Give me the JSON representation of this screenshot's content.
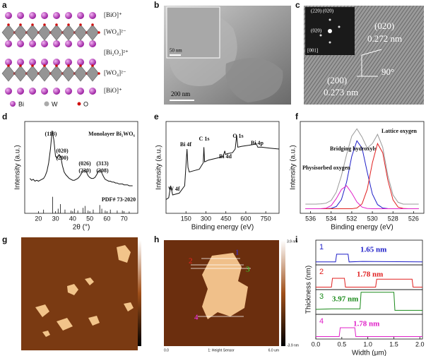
{
  "panel_labels": [
    "a",
    "b",
    "c",
    "d",
    "e",
    "f",
    "g",
    "h",
    "i"
  ],
  "structure": {
    "layers": [
      "[BiO]⁺",
      "[WO₄]²⁻",
      "[Bi₂O₂]²⁺",
      "[WO₄]²⁻",
      "[BiO]⁺"
    ],
    "legend": [
      "Bi",
      "W",
      "O"
    ]
  },
  "tem": {
    "scale_inset": "50 nm",
    "scale_main": "200 nm"
  },
  "hrtem": {
    "saed_labels": [
      "(220) (020)",
      "(020)",
      "[001]"
    ],
    "labels": [
      "(020)",
      "0.272 nm",
      "(200)",
      "0.273 nm",
      "90°"
    ]
  },
  "afm_h": {
    "profile_numbers": [
      "1",
      "2",
      "3",
      "4"
    ],
    "colorbar_max": "3.9 nm",
    "colorbar_min": "-3.9 nm",
    "x_start": "0.0",
    "x_end": "6.0 um",
    "channel": "1: Height Sensor"
  },
  "chart_data": [
    {
      "type": "line",
      "xlabel": "2θ (°)",
      "ylabel": "Intensity (a.u.)",
      "xlim": [
        12,
        78
      ],
      "xticks": [
        20,
        30,
        40,
        50,
        60,
        70
      ],
      "ylim": [
        0,
        1
      ],
      "x": [
        15,
        16,
        17,
        18,
        19,
        20,
        21,
        22,
        23,
        24,
        25,
        26,
        27,
        28,
        29,
        30,
        31,
        32,
        33,
        34,
        35,
        36,
        37,
        38,
        39,
        40,
        41,
        42,
        43,
        44,
        45,
        46,
        47,
        48,
        49,
        50,
        51,
        52,
        53,
        54,
        55,
        56,
        57,
        58,
        59,
        60,
        61,
        62,
        63,
        64,
        65,
        66,
        67,
        68,
        69,
        70,
        71,
        72,
        73,
        74,
        75
      ],
      "series": [
        {
          "color": "#111111",
          "values": [
            0.38,
            0.36,
            0.37,
            0.35,
            0.36,
            0.35,
            0.36,
            0.37,
            0.38,
            0.41,
            0.46,
            0.55,
            0.7,
            0.9,
            0.8,
            0.62,
            0.6,
            0.64,
            0.62,
            0.52,
            0.45,
            0.42,
            0.4,
            0.38,
            0.37,
            0.36,
            0.36,
            0.37,
            0.38,
            0.4,
            0.43,
            0.46,
            0.47,
            0.45,
            0.41,
            0.39,
            0.38,
            0.38,
            0.39,
            0.42,
            0.46,
            0.47,
            0.44,
            0.4,
            0.37,
            0.36,
            0.35,
            0.35,
            0.34,
            0.34,
            0.33,
            0.33,
            0.32,
            0.32,
            0.32,
            0.31,
            0.31,
            0.31,
            0.3,
            0.3,
            0.3
          ]
        }
      ],
      "reference_x": [
        23,
        28.3,
        31.5,
        32.8,
        35.5,
        39,
        41,
        43,
        46,
        47.2,
        49,
        52,
        55.8,
        57,
        59,
        62,
        66,
        69,
        73
      ],
      "reference_values": [
        0.04,
        0.18,
        0.05,
        0.1,
        0.04,
        0.03,
        0.05,
        0.03,
        0.06,
        0.08,
        0.03,
        0.04,
        0.09,
        0.05,
        0.03,
        0.04,
        0.03,
        0.03,
        0.02
      ],
      "annotations": [
        "(113)",
        "(020)",
        "(200)",
        "(026)",
        "(220)",
        "(313)",
        "(208)",
        "Monolayer Bi₂WO₆",
        "PDF# 73-2020"
      ]
    },
    {
      "type": "line",
      "xlabel": "Binding energy (eV)",
      "ylabel": "Intensity (a.u.)",
      "xlim": [
        0,
        850
      ],
      "xticks": [
        150,
        300,
        450,
        600,
        750
      ],
      "ylim": [
        0,
        1
      ],
      "x": [
        0,
        20,
        35,
        50,
        100,
        140,
        158,
        165,
        175,
        200,
        250,
        280,
        285,
        290,
        320,
        380,
        430,
        442,
        448,
        460,
        500,
        520,
        531,
        540,
        570,
        620,
        660,
        678,
        690,
        720,
        780,
        850
      ],
      "series": [
        {
          "color": "#111111",
          "values": [
            0.15,
            0.17,
            0.3,
            0.2,
            0.22,
            0.3,
            0.7,
            0.5,
            0.45,
            0.46,
            0.48,
            0.55,
            0.72,
            0.56,
            0.58,
            0.6,
            0.62,
            0.68,
            0.64,
            0.65,
            0.66,
            0.7,
            0.85,
            0.72,
            0.73,
            0.74,
            0.75,
            0.76,
            0.72,
            0.72,
            0.71,
            0.7
          ]
        }
      ],
      "annotations": [
        "W 4f",
        "Bi 4f",
        "C 1s",
        "Bi 4d",
        "O 1s",
        "Bi 4p"
      ]
    },
    {
      "type": "line",
      "xlabel": "Binding energy (eV)",
      "ylabel": "Intensity (a.u.)",
      "xlim": [
        537,
        525
      ],
      "xticks": [
        536,
        534,
        532,
        530,
        528,
        526
      ],
      "ylim": [
        0,
        1
      ],
      "x": [
        536.5,
        536,
        535.5,
        535,
        534.5,
        534,
        533.5,
        533,
        532.5,
        532,
        531.5,
        531,
        530.5,
        530,
        529.5,
        529,
        528.5,
        528,
        527.5,
        527,
        526.5,
        526,
        525.5
      ],
      "series": [
        {
          "color": "#999999",
          "values": [
            0.1,
            0.1,
            0.1,
            0.103,
            0.11,
            0.14,
            0.23,
            0.41,
            0.64,
            0.84,
            0.92,
            0.83,
            0.71,
            0.76,
            0.86,
            0.72,
            0.41,
            0.2,
            0.12,
            0.1,
            0.1,
            0.1,
            0.1
          ]
        },
        {
          "name": "Bridging hydroxyls",
          "color": "#1f1fc8",
          "values": [
            0.05,
            0.05,
            0.05,
            0.05,
            0.05,
            0.054,
            0.074,
            0.15,
            0.34,
            0.62,
            0.79,
            0.71,
            0.45,
            0.21,
            0.095,
            0.058,
            0.051,
            0.05,
            0.05,
            0.05,
            0.05,
            0.05,
            0.05
          ]
        },
        {
          "name": "Lattice oxygen",
          "color": "#e02020",
          "values": [
            0.05,
            0.05,
            0.05,
            0.05,
            0.05,
            0.05,
            0.05,
            0.05,
            0.05,
            0.05,
            0.058,
            0.103,
            0.26,
            0.55,
            0.76,
            0.66,
            0.36,
            0.147,
            0.068,
            0.053,
            0.05,
            0.05,
            0.05
          ]
        },
        {
          "name": "Physisorbed oxygen",
          "color": "#e020c8",
          "values": [
            0.05,
            0.05,
            0.05,
            0.051,
            0.056,
            0.084,
            0.16,
            0.26,
            0.3,
            0.22,
            0.123,
            0.068,
            0.053,
            0.05,
            0.05,
            0.05,
            0.05,
            0.05,
            0.05,
            0.05,
            0.05,
            0.05,
            0.05
          ]
        }
      ]
    },
    {
      "type": "line",
      "xlabel": "Width (μm)",
      "ylabel": "Thickness (nm)",
      "xlim": [
        0,
        2.05
      ],
      "xticks": [
        {
          "value": 0,
          "label": "0.0"
        },
        0.5,
        {
          "value": 1,
          "label": "1.0"
        },
        1.5,
        {
          "value": 2,
          "label": "2.0"
        }
      ],
      "ylim": [
        -0.5,
        4.5
      ],
      "series": [
        {
          "name": "1",
          "color": "#1f1fc8",
          "label": "1.65 nm",
          "x": [
            0,
            0.38,
            0.4,
            0.62,
            0.64,
            0.9,
            2.05
          ],
          "values": [
            0.1,
            0.1,
            1.65,
            1.65,
            0.1,
            0.2,
            0.1
          ]
        },
        {
          "name": "2",
          "color": "#e02020",
          "label": "1.78 nm",
          "x": [
            0,
            0.3,
            0.32,
            0.55,
            0.57,
            1.15,
            1.17,
            1.85,
            1.87,
            2.05
          ],
          "values": [
            0,
            0,
            1.78,
            1.78,
            0,
            0,
            1.6,
            1.6,
            0,
            0
          ]
        },
        {
          "name": "3",
          "color": "#1a8a1a",
          "label": "3.97 nm",
          "x": [
            0,
            0.3,
            0.85,
            0.87,
            1.5,
            1.52,
            2.05
          ],
          "values": [
            0.5,
            0.6,
            0.6,
            3.97,
            3.97,
            0.3,
            0.3
          ]
        },
        {
          "name": "4",
          "color": "#e020c8",
          "label": "1.78 nm",
          "x": [
            0,
            0.45,
            0.47,
            0.75,
            0.77,
            2.05
          ],
          "values": [
            0,
            0,
            1.78,
            1.78,
            0,
            0
          ]
        }
      ]
    }
  ]
}
